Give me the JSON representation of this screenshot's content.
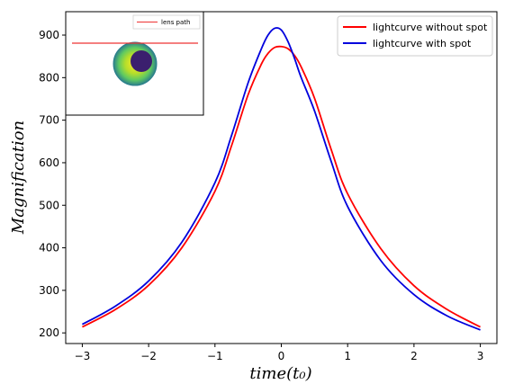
{
  "chart_data": {
    "type": "line",
    "xlabel": "time(t₀)",
    "ylabel": "Magnification",
    "xlim": [
      -3.25,
      3.25
    ],
    "ylim": [
      175,
      955
    ],
    "xticks": [
      -3,
      -2,
      -1,
      0,
      1,
      2,
      3
    ],
    "xtick_labels": [
      "−3",
      "−2",
      "−1",
      "0",
      "1",
      "2",
      "3"
    ],
    "yticks": [
      200,
      300,
      400,
      500,
      600,
      700,
      800,
      900
    ],
    "ytick_labels": [
      "200",
      "300",
      "400",
      "500",
      "600",
      "700",
      "800",
      "900"
    ],
    "grid": false,
    "legend_position": "top-right",
    "series": [
      {
        "name": "lightcurve without spot",
        "color": "#ff0000",
        "x": [
          -3.0,
          -2.5,
          -2.0,
          -1.5,
          -1.0,
          -0.75,
          -0.5,
          -0.3,
          -0.2,
          -0.1,
          0.0,
          0.1,
          0.2,
          0.3,
          0.5,
          0.75,
          1.0,
          1.5,
          2.0,
          2.5,
          3.0
        ],
        "y": [
          214,
          255,
          312,
          400,
          533,
          640,
          760,
          832,
          857,
          871,
          873,
          868,
          852,
          825,
          752,
          632,
          527,
          398,
          311,
          255,
          214
        ]
      },
      {
        "name": "lightcurve with spot",
        "color": "#0000dd",
        "x": [
          -3.0,
          -2.5,
          -2.0,
          -1.5,
          -1.0,
          -0.75,
          -0.5,
          -0.3,
          -0.2,
          -0.1,
          0.0,
          0.1,
          0.2,
          0.3,
          0.5,
          0.75,
          1.0,
          1.5,
          2.0,
          2.5,
          3.0
        ],
        "y": [
          220,
          263,
          322,
          413,
          553,
          664,
          788,
          868,
          900,
          916,
          912,
          885,
          845,
          800,
          722,
          604,
          497,
          370,
          290,
          240,
          207
        ]
      }
    ],
    "inset": {
      "legend_label": "lens path",
      "line_color": "#ee3333",
      "colors": {
        "disk_edge": "#2c7f8c",
        "disk_mid": "#5ec962",
        "disk_center": "#fde725",
        "spot": "#3b1f6e"
      }
    }
  }
}
